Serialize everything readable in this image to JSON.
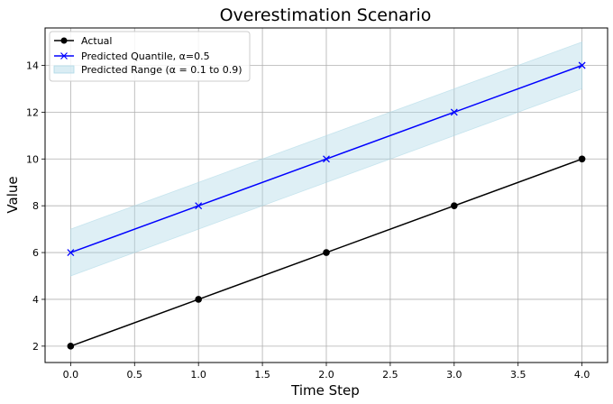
{
  "chart_data": {
    "type": "line",
    "title": "Overestimation Scenario",
    "xlabel": "Time Step",
    "ylabel": "Value",
    "x": [
      0,
      1,
      2,
      3,
      4
    ],
    "xlim": [
      -0.2,
      4.2
    ],
    "ylim": [
      1.3,
      15.6
    ],
    "xticks": [
      0.0,
      0.5,
      1.0,
      1.5,
      2.0,
      2.5,
      3.0,
      3.5,
      4.0
    ],
    "xtick_labels": [
      "0.0",
      "0.5",
      "1.0",
      "1.5",
      "2.0",
      "2.5",
      "3.0",
      "3.5",
      "4.0"
    ],
    "yticks": [
      2,
      4,
      6,
      8,
      10,
      12,
      14
    ],
    "ytick_labels": [
      "2",
      "4",
      "6",
      "8",
      "10",
      "12",
      "14"
    ],
    "grid": true,
    "legend_position": "top-left",
    "series": [
      {
        "name": "Actual",
        "values": [
          2,
          4,
          6,
          8,
          10
        ],
        "color": "#000000",
        "marker": "circle"
      },
      {
        "name": "Predicted Quantile, α=0.5",
        "values": [
          6,
          8,
          10,
          12,
          14
        ],
        "color": "#0000ff",
        "marker": "x"
      }
    ],
    "band": {
      "name": "Predicted Range (α = 0.1 to 0.9)",
      "lower": [
        5,
        7,
        9,
        11,
        13
      ],
      "upper": [
        7,
        9,
        11,
        13,
        15
      ],
      "color": "#add8e6"
    }
  }
}
